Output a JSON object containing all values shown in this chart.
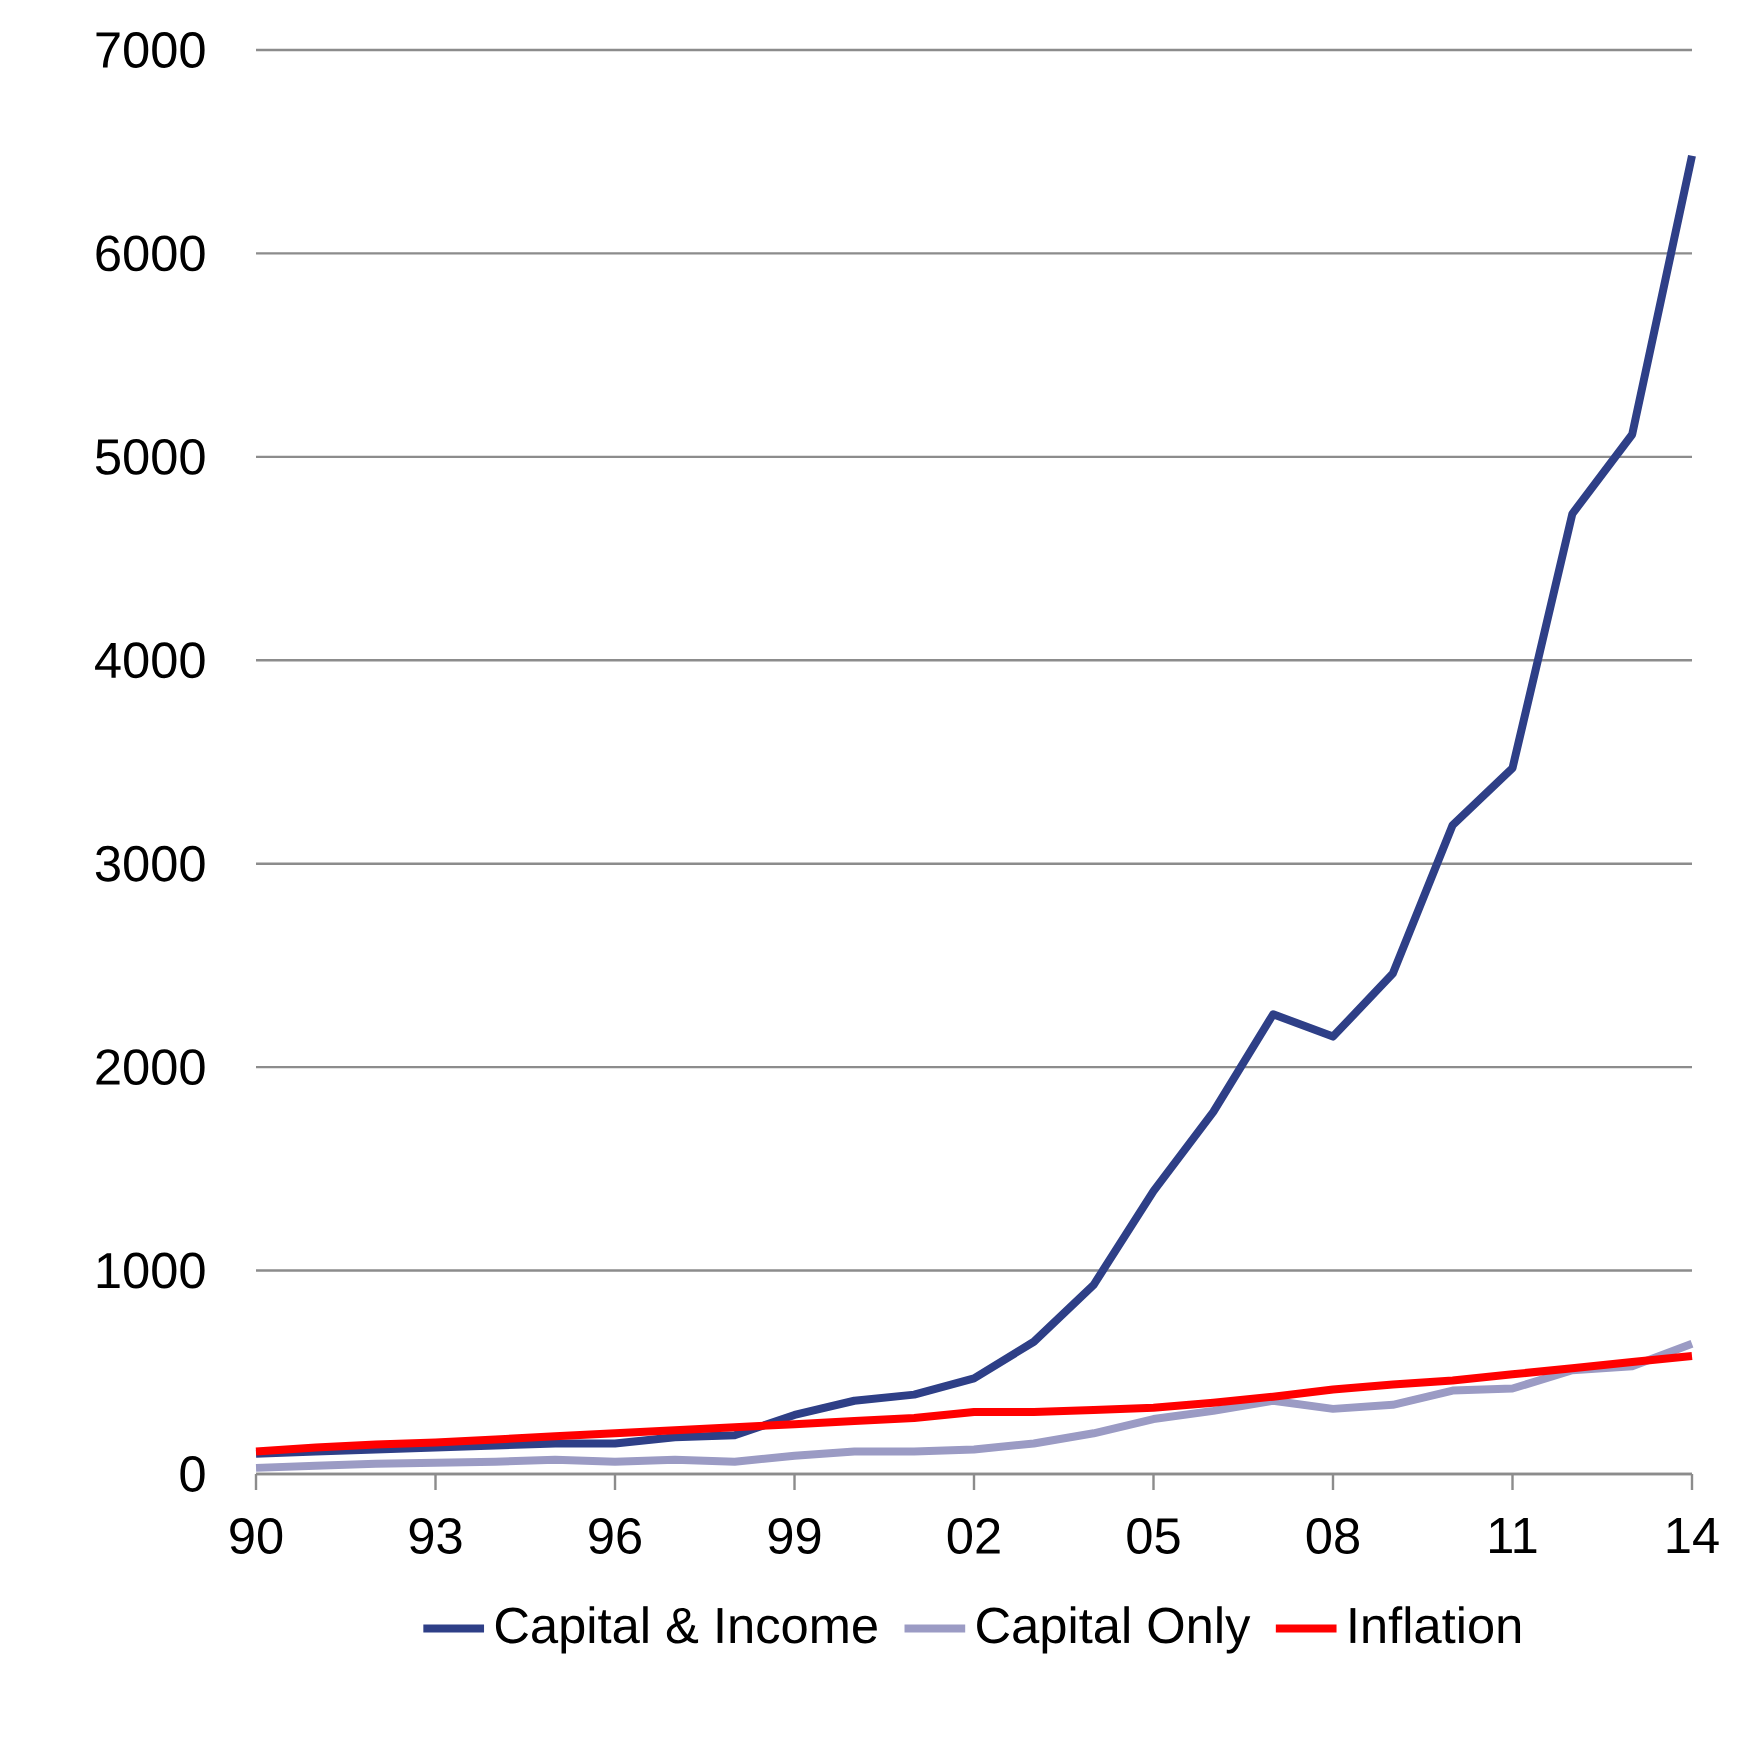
{
  "chart_data": {
    "type": "line",
    "x": [
      1990,
      1991,
      1992,
      1993,
      1994,
      1995,
      1996,
      1997,
      1998,
      1999,
      2000,
      2001,
      2002,
      2003,
      2004,
      2005,
      2006,
      2007,
      2008,
      2009,
      2010,
      2011,
      2012,
      2013,
      2014
    ],
    "series": [
      {
        "name": "Capital & Income",
        "color": "#2e3f87",
        "values": [
          100,
          110,
          120,
          130,
          140,
          150,
          150,
          180,
          190,
          290,
          360,
          390,
          470,
          650,
          930,
          1390,
          1780,
          2260,
          2150,
          2460,
          3190,
          3470,
          4720,
          5110,
          6480
        ]
      },
      {
        "name": "Capital Only",
        "color": "#9b9bc4",
        "values": [
          30,
          40,
          50,
          55,
          60,
          70,
          60,
          70,
          60,
          90,
          110,
          110,
          120,
          150,
          200,
          270,
          310,
          360,
          320,
          340,
          410,
          420,
          510,
          530,
          640
        ]
      },
      {
        "name": "Inflation",
        "color": "#ff0000",
        "values": [
          110,
          130,
          145,
          155,
          170,
          185,
          200,
          215,
          230,
          245,
          260,
          275,
          305,
          305,
          315,
          325,
          350,
          380,
          415,
          440,
          460,
          490,
          520,
          550,
          580
        ]
      }
    ],
    "xlim": [
      1990,
      2014
    ],
    "xticks": [
      {
        "value": 1990,
        "label": "90"
      },
      {
        "value": 1993,
        "label": "93"
      },
      {
        "value": 1996,
        "label": "96"
      },
      {
        "value": 1999,
        "label": "99"
      },
      {
        "value": 2002,
        "label": "02"
      },
      {
        "value": 2005,
        "label": "05"
      },
      {
        "value": 2008,
        "label": "08"
      },
      {
        "value": 2011,
        "label": "11"
      },
      {
        "value": 2014,
        "label": "14"
      }
    ],
    "ylim": [
      0,
      7000
    ],
    "yticks": [
      0,
      1000,
      2000,
      3000,
      4000,
      5000,
      6000,
      7000
    ],
    "grid": "y",
    "legend": "bottom",
    "marker": "none",
    "line_style": "solid"
  }
}
